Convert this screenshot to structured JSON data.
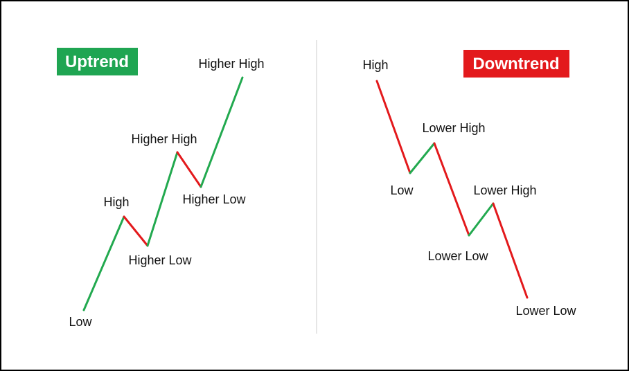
{
  "colors": {
    "up": "#22a94f",
    "down": "#e3191c",
    "divider": "#cccccc",
    "badge_up": "#1fa552",
    "badge_down": "#e3191c"
  },
  "uptrend": {
    "title": "Uptrend",
    "points": [
      {
        "label": "Low"
      },
      {
        "label": "High"
      },
      {
        "label": "Higher Low"
      },
      {
        "label": "Higher High"
      },
      {
        "label": "Higher Low"
      },
      {
        "label": "Higher High"
      }
    ]
  },
  "downtrend": {
    "title": "Downtrend",
    "points": [
      {
        "label": "High"
      },
      {
        "label": "Low"
      },
      {
        "label": "Lower High"
      },
      {
        "label": "Lower Low"
      },
      {
        "label": "Lower High"
      },
      {
        "label": "Lower Low"
      }
    ]
  }
}
